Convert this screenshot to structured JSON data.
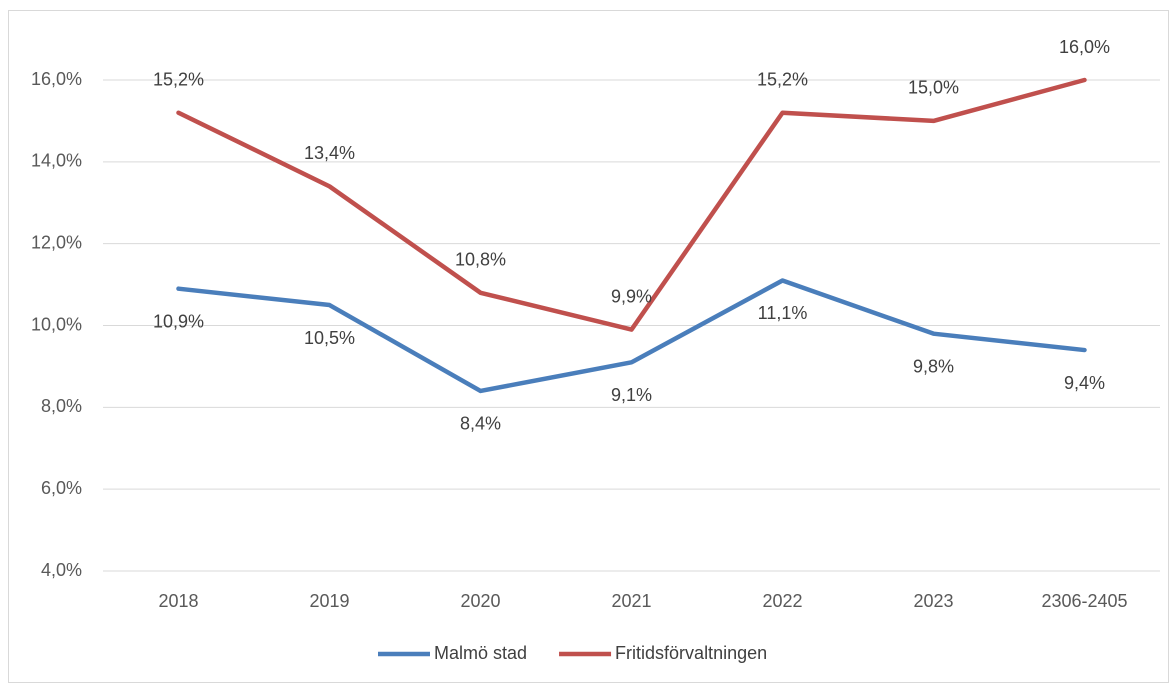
{
  "chart_data": {
    "type": "line",
    "categories": [
      "2018",
      "2019",
      "2020",
      "2021",
      "2022",
      "2023",
      "2306-2405"
    ],
    "series": [
      {
        "name": "Malmö stad",
        "color": "#4a7ebb",
        "values": [
          10.9,
          10.5,
          8.4,
          9.1,
          11.1,
          9.8,
          9.4
        ],
        "value_labels": [
          "10,9%",
          "10,5%",
          "8,4%",
          "9,1%",
          "11,1%",
          "9,8%",
          "9,4%"
        ]
      },
      {
        "name": "Fritidsförvaltningen",
        "color": "#c0504d",
        "values": [
          15.2,
          13.4,
          10.8,
          9.9,
          15.2,
          15.0,
          16.0
        ],
        "value_labels": [
          "15,2%",
          "13,4%",
          "10,8%",
          "9,9%",
          "15,2%",
          "15,0%",
          "16,0%"
        ]
      }
    ],
    "ylim": [
      4,
      16
    ],
    "yticks": [
      {
        "value": 4,
        "label": "4,0%"
      },
      {
        "value": 6,
        "label": "6,0%"
      },
      {
        "value": 8,
        "label": "8,0%"
      },
      {
        "value": 10,
        "label": "10,0%"
      },
      {
        "value": 12,
        "label": "12,0%"
      },
      {
        "value": 14,
        "label": "14,0%"
      },
      {
        "value": 16,
        "label": "16,0%"
      }
    ],
    "grid": true,
    "legend": "bottom"
  }
}
